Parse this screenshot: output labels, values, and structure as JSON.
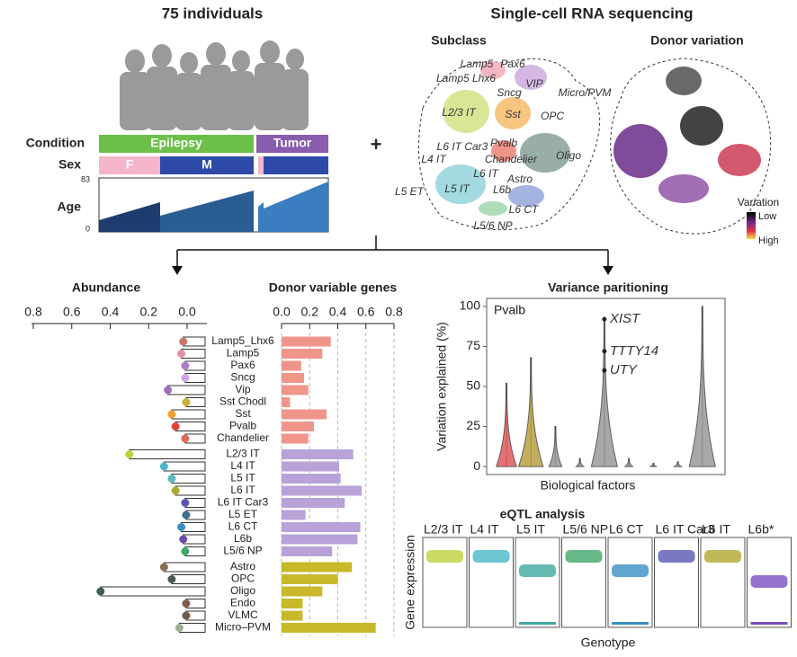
{
  "header": {
    "left_title": "75 individuals",
    "right_title": "Single-cell RNA sequencing",
    "plus": "+",
    "condition": "Condition",
    "sex": "Sex",
    "age": "Age",
    "epilepsy": "Epilepsy",
    "tumor": "Tumor",
    "female": "F",
    "male": "M",
    "age_max": "83",
    "age_min": "0",
    "subclass": "Subclass",
    "donor_variation": "Donor variation",
    "variation": "Variation",
    "low": "Low",
    "high": "High",
    "clusters": [
      "Lamp5",
      "Pax6",
      "Lamp5 Lhx6",
      "VIP",
      "Sncg",
      "Micro/PVM",
      "L2/3 IT",
      "Sst",
      "OPC",
      "L6 IT Car3",
      "Pvalb",
      "Chandelier",
      "Oligo",
      "L4 IT",
      "L6 IT",
      "Astro",
      "L5 IT",
      "L6b",
      "L5 ET",
      "L6 CT",
      "L5/6 NP"
    ]
  },
  "chart_data": [
    {
      "type": "strip",
      "title": "Abundance",
      "categories": [
        "Lamp5_Lhx6",
        "Lamp5",
        "Pax6",
        "Sncg",
        "Vip",
        "Sst Chodl",
        "Sst",
        "Pvalb",
        "Chandelier",
        "L2/3 IT",
        "L4 IT",
        "L5 IT",
        "L6 IT",
        "L6 IT Car3",
        "L5 ET",
        "L6 CT",
        "L6b",
        "L5/6 NP",
        "Astro",
        "OPC",
        "Oligo",
        "Endo",
        "VLMC",
        "Micro–PVM"
      ],
      "values": [
        0.02,
        0.03,
        0.01,
        0.01,
        0.1,
        0.005,
        0.08,
        0.06,
        0.01,
        0.3,
        0.12,
        0.08,
        0.06,
        0.01,
        0.005,
        0.03,
        0.02,
        0.01,
        0.12,
        0.08,
        0.45,
        0.005,
        0.005,
        0.04
      ],
      "colors": [
        "#c47a6a",
        "#e58fa4",
        "#b07cc6",
        "#d2a6e0",
        "#a26fc0",
        "#c8b23a",
        "#f0a030",
        "#e0433a",
        "#e06a5a",
        "#bfd13a",
        "#4ab7c9",
        "#5fb7c2",
        "#b0a830",
        "#5a56b3",
        "#3c6f8a",
        "#3a8fc4",
        "#6a4fb0",
        "#3fa86a",
        "#8a6e52",
        "#4a5a5a",
        "#3b5e5a",
        "#7c5c4a",
        "#6f5a4a",
        "#9cb090"
      ],
      "xlim": [
        0.8,
        0
      ],
      "xticks": [
        0.8,
        0.6,
        0.4,
        0.2,
        {
          "value": 0,
          "label": "0.0"
        }
      ]
    },
    {
      "type": "bar",
      "title": "Donor variable genes",
      "values": [
        0.35,
        0.29,
        0.14,
        0.16,
        0.19,
        0.06,
        0.32,
        0.23,
        0.19,
        0.51,
        0.41,
        0.42,
        0.57,
        0.45,
        0.17,
        0.56,
        0.54,
        0.36,
        0.5,
        0.4,
        0.29,
        0.15,
        0.15,
        0.67
      ],
      "colors": [
        "#f0958a",
        "#f0958a",
        "#f0958a",
        "#f0958a",
        "#f0958a",
        "#f0958a",
        "#f0958a",
        "#f0958a",
        "#f0958a",
        "#b8a2d8",
        "#b8a2d8",
        "#b8a2d8",
        "#b8a2d8",
        "#b8a2d8",
        "#b8a2d8",
        "#b8a2d8",
        "#b8a2d8",
        "#b8a2d8",
        "#c9b82a",
        "#c9b82a",
        "#c9b82a",
        "#c9b82a",
        "#c9b82a",
        "#c9b82a"
      ],
      "xlim": [
        0,
        0.8
      ],
      "xticks": [
        {
          "value": 0,
          "label": "0.0"
        },
        0.2,
        0.4,
        0.6,
        0.8
      ],
      "grid": true
    },
    {
      "type": "violin",
      "title": "Variance paritioning",
      "annotation": "Pvalb",
      "ylabel": "Variation explained (%)",
      "xlabel": "Biological factors",
      "values": [
        52,
        68,
        25,
        5,
        93,
        5,
        2,
        3,
        100
      ],
      "colors": [
        "#e05a5a",
        "#b8a040",
        "#999999",
        "#999999",
        "#999999",
        "#999999",
        "#999999",
        "#999999",
        "#999999"
      ],
      "genes": [
        {
          "text": "XIST",
          "value": 92
        },
        {
          "text": "TTTY14",
          "value": 72
        },
        {
          "text": "UTY",
          "value": 60
        }
      ],
      "ylim": [
        -5,
        105
      ],
      "yticks": [
        0,
        25,
        50,
        75,
        100
      ]
    },
    {
      "type": "panels",
      "title": "eQTL analysis",
      "ylabel": "Gene expression",
      "xlabel": "Genotype",
      "categories": [
        "L2/3 IT",
        "L4 IT",
        "L5 IT",
        "L5/6 NP",
        "L6 CT",
        "L6 IT Car3",
        "L6 IT",
        "L6b*"
      ],
      "colors": [
        "#bfd13a",
        "#4ab7c9",
        "#3fa8a0",
        "#3fa86a",
        "#3a8fc4",
        "#5a56b3",
        "#b0a830",
        "#7a4fc0"
      ]
    }
  ]
}
